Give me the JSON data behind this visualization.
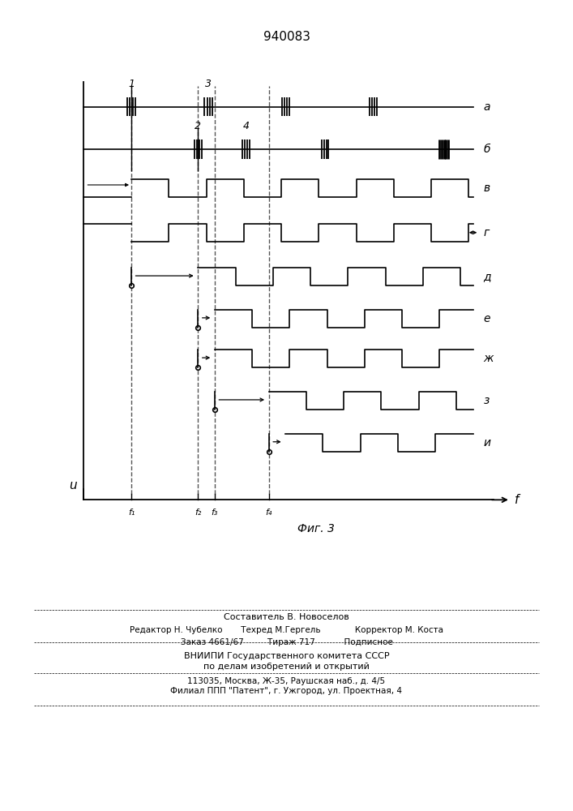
{
  "title": "940083",
  "fig_caption": "Фиг. 3",
  "x_label": "f",
  "y_label": "u",
  "freq_labels": [
    "f₁",
    "f₂",
    "f₃",
    "f₄"
  ],
  "signal_labels": [
    "а",
    "б",
    "в",
    "г",
    "д",
    "е",
    "ж",
    "з",
    "и"
  ],
  "background_color": "#ffffff",
  "line_color": "#000000",
  "dashed_color": "#555555",
  "f1": 1.5,
  "f2": 3.1,
  "f3": 3.5,
  "f4": 4.8,
  "xmax": 9.5,
  "period": 1.8,
  "amp": 0.42,
  "footer_lines": [
    "Составитель В. Новоселов",
    "Редактор Н. Чубелко       Техред М.Гергель             Корректор М. Коста",
    "Заказ 4661/67         Тираж 717           Подписное",
    "ВНИИПИ Государственного комитета СССР",
    "по делам изобретений и открытий",
    "113035, Москва, Ж-35, Раушская наб., д. 4/5",
    "Филиал ППП \"Патент\", г. Ужгород, ул. Проектная, 4"
  ]
}
